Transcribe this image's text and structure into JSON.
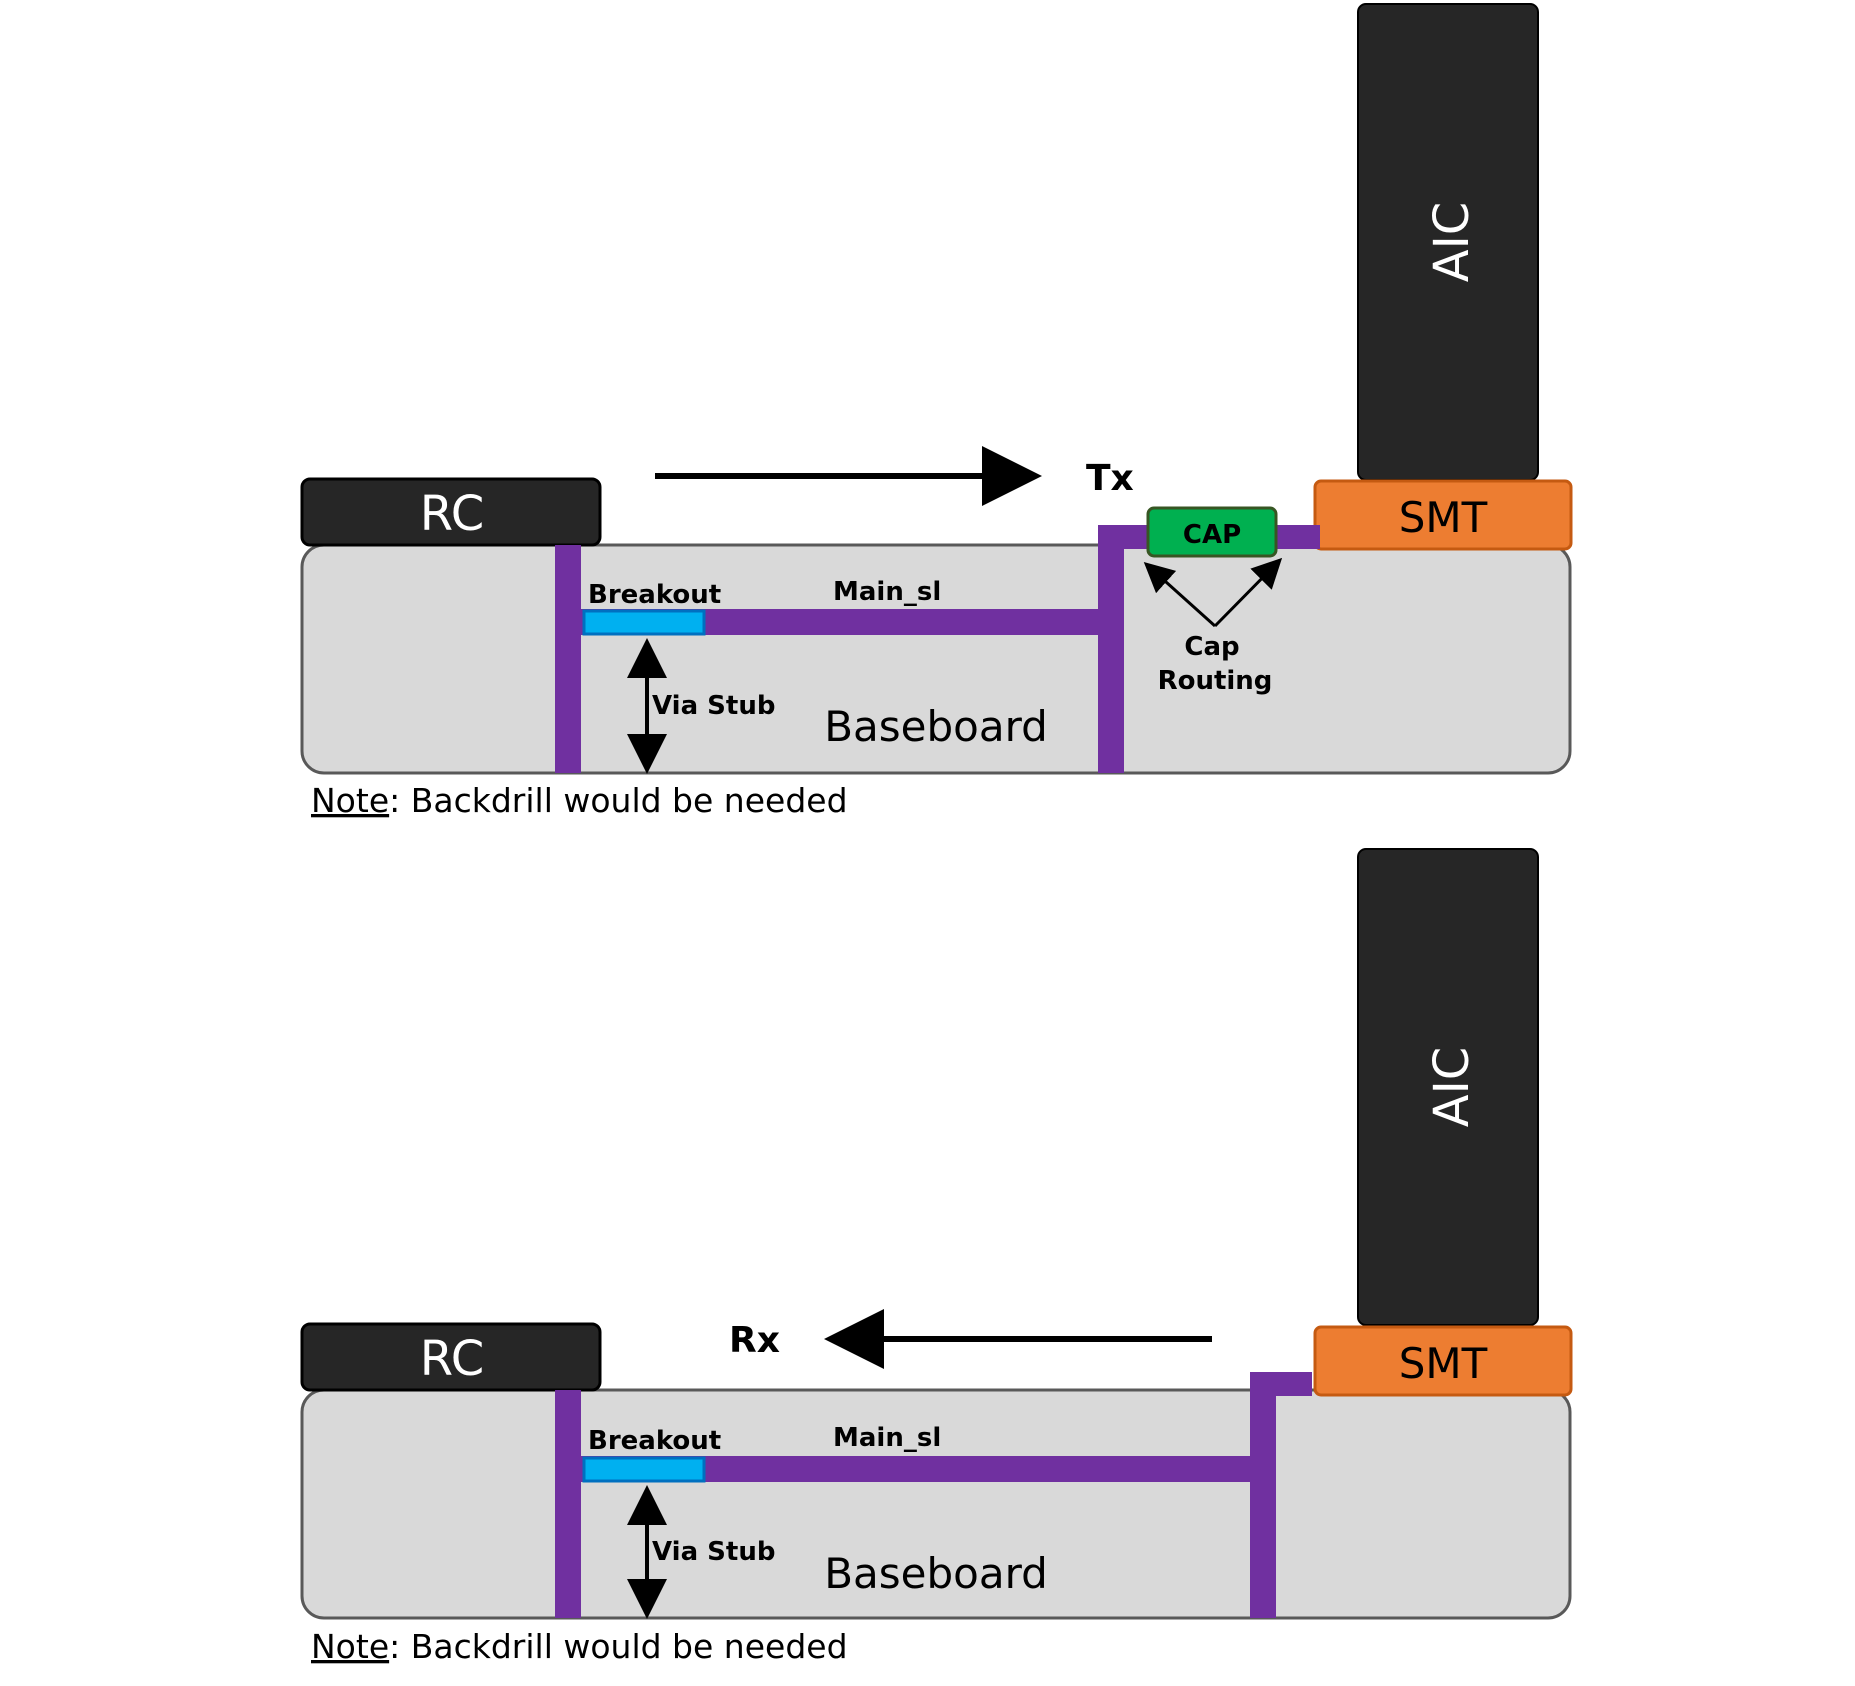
{
  "colors": {
    "board_fill": "#d9d9d9",
    "board_stroke": "#595959",
    "component_dark": "#262626",
    "trace_purple": "#7030a0",
    "breakout_blue": "#00b0f0",
    "smt_orange": "#ed7d31",
    "cap_green": "#00b050",
    "text": "#000000",
    "text_light": "#ffffff"
  },
  "tx_panel": {
    "rc_label": "RC",
    "aic_label": "AIC",
    "smt_label": "SMT",
    "cap_label": "CAP",
    "direction_label": "Tx",
    "breakout_label": "Breakout",
    "main_label": "Main_sl",
    "via_stub_label": "Via Stub",
    "baseboard_label": "Baseboard",
    "cap_routing_line1": "Cap",
    "cap_routing_line2": "Routing",
    "note_word": "Note",
    "note_text": ": Backdrill would be needed"
  },
  "rx_panel": {
    "rc_label": "RC",
    "aic_label": "AIC",
    "smt_label": "SMT",
    "direction_label": "Rx",
    "breakout_label": "Breakout",
    "main_label": "Main_sl",
    "via_stub_label": "Via Stub",
    "baseboard_label": "Baseboard",
    "note_word": "Note",
    "note_text": ": Backdrill would be needed"
  }
}
